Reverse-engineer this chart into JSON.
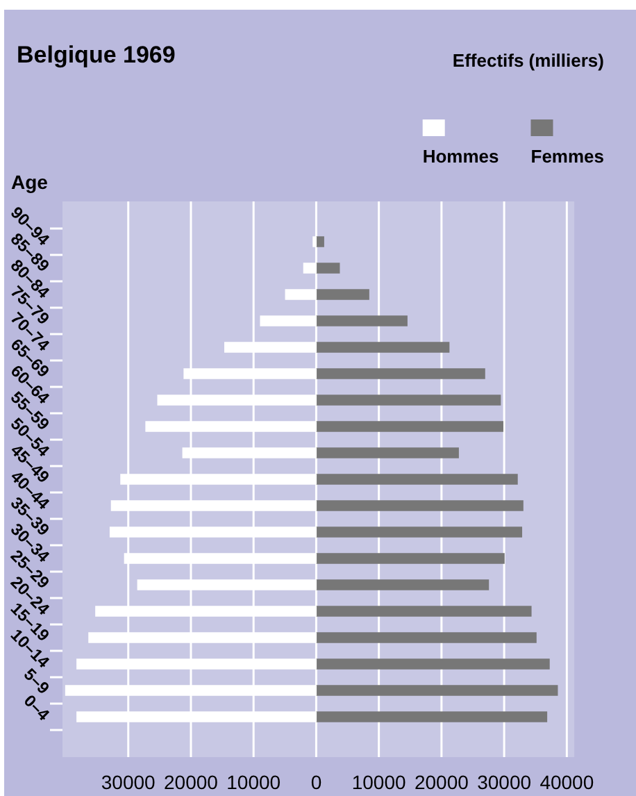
{
  "chart_data": {
    "type": "bar",
    "orientation": "horizontal",
    "stacked": true,
    "title": "Belgique 1969",
    "ylabel": "Age",
    "annotations": [
      "Effectifs (milliers)"
    ],
    "categories": [
      "90–94",
      "85–89",
      "80–84",
      "75–79",
      "70–74",
      "65–69",
      "60–64",
      "55–59",
      "50–54",
      "45–49",
      "40–44",
      "35–39",
      "30–34",
      "25–29",
      "20–24",
      "15–19",
      "10–14",
      "5–9",
      "0–4"
    ],
    "series": [
      {
        "name": "Hommes",
        "color": "#ffffff",
        "values": [
          -500,
          -2000,
          -4900,
          -8900,
          -14600,
          -21100,
          -25300,
          -27200,
          -21300,
          -31200,
          -32700,
          -32900,
          -30600,
          -28500,
          -35200,
          -36300,
          -38200,
          -40000,
          -38200
        ]
      },
      {
        "name": "Femmes",
        "color": "#777777",
        "values": [
          1200,
          3700,
          8400,
          14500,
          21200,
          26900,
          29400,
          29800,
          22700,
          32100,
          33000,
          32800,
          30000,
          27500,
          34300,
          35100,
          37200,
          38500,
          36800
        ]
      }
    ],
    "xlim": [
      -40500,
      41200
    ],
    "xticks": [
      {
        "value": -30000,
        "label": "30000"
      },
      {
        "value": -20000,
        "label": "20000"
      },
      {
        "value": -10000,
        "label": "10000"
      },
      0,
      10000,
      20000,
      30000,
      40000
    ],
    "grid": "x",
    "legend": "top right"
  }
}
